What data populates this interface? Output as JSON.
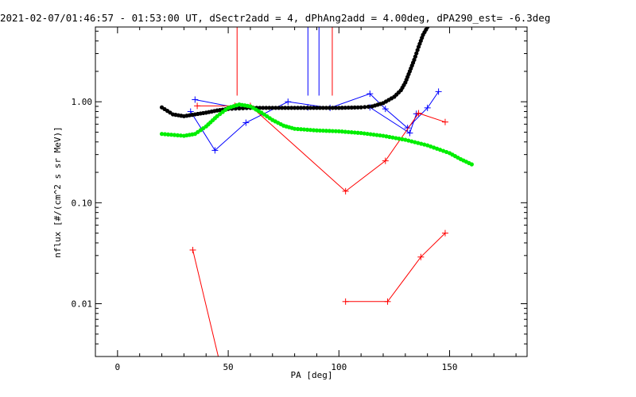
{
  "chart_data": {
    "type": "line",
    "title": "2021-02-07/01:46:57 - 01:53:00 UT, dSectr2add = 4, dPhAng2add = 4.00deg, dPA290_est=  -6.3deg",
    "xlabel": "PA [deg]",
    "ylabel": "nflux [#/(cm^2 s sr MeV)]",
    "xlim": [
      -10,
      185
    ],
    "ylim": [
      0.003,
      5.5
    ],
    "yscale": "log",
    "xticks": [
      0,
      50,
      100,
      150
    ],
    "xtick_labels": [
      "0",
      "50",
      "100",
      "150"
    ],
    "yticks": [
      1.0,
      0.1,
      0.01
    ],
    "ytick_labels": [
      "1.00",
      "0.10",
      "0.01"
    ],
    "colors": {
      "blue": "#0000ff",
      "red": "#ff0000",
      "black": "#000000",
      "green": "#00ee00"
    },
    "vertical_markers": [
      {
        "color": "#ff0000",
        "x": 54,
        "y_from": 1.15
      },
      {
        "color": "#ff0000",
        "x": 97,
        "y_from": 1.15
      },
      {
        "color": "#0000ff",
        "x": 86,
        "y_from": 1.15
      },
      {
        "color": "#0000ff",
        "x": 91,
        "y_from": 1.15
      }
    ],
    "series": [
      {
        "name": "blue-upper",
        "color": "#0000ff",
        "style": "line-plus",
        "x": [
          33,
          44,
          58,
          77,
          96,
          114,
          121,
          131,
          140,
          145
        ],
        "y": [
          0.8,
          0.33,
          0.62,
          1.0,
          0.87,
          1.2,
          0.85,
          0.55,
          0.87,
          1.26
        ]
      },
      {
        "name": "blue-lower",
        "color": "#0000ff",
        "style": "line-plus",
        "x": [
          35,
          53,
          86,
          114,
          132,
          135
        ],
        "y": [
          1.05,
          0.88,
          0.88,
          0.88,
          0.49,
          0.76
        ]
      },
      {
        "name": "red-upper",
        "color": "#ff0000",
        "style": "line-plus",
        "x": [
          36,
          53,
          60,
          103,
          121,
          136,
          148
        ],
        "y": [
          0.91,
          0.91,
          0.91,
          0.13,
          0.26,
          0.77,
          0.63
        ]
      },
      {
        "name": "red-middle",
        "color": "#ff0000",
        "style": "line-plus",
        "x": [
          103,
          122,
          137,
          148
        ],
        "y": [
          0.0105,
          0.0105,
          0.029,
          0.05
        ]
      },
      {
        "name": "red-lower",
        "color": "#ff0000",
        "style": "line-plus",
        "x": [
          34,
          45.5
        ],
        "y": [
          0.034,
          0.003
        ]
      },
      {
        "name": "model-black",
        "color": "#000000",
        "style": "dots",
        "x": [
          20,
          25,
          30,
          35,
          40,
          45,
          50,
          55,
          60,
          70,
          80,
          90,
          100,
          110,
          115,
          120,
          125,
          128,
          130,
          132,
          134,
          136,
          138,
          140
        ],
        "y": [
          0.88,
          0.75,
          0.72,
          0.75,
          0.78,
          0.82,
          0.85,
          0.86,
          0.87,
          0.87,
          0.87,
          0.87,
          0.87,
          0.88,
          0.9,
          0.97,
          1.12,
          1.3,
          1.55,
          2.0,
          2.6,
          3.5,
          4.6,
          5.5
        ]
      },
      {
        "name": "model-green",
        "color": "#00ee00",
        "style": "dots",
        "x": [
          20,
          30,
          35,
          40,
          45,
          50,
          55,
          60,
          65,
          70,
          75,
          80,
          90,
          100,
          110,
          120,
          130,
          140,
          150,
          155,
          160
        ],
        "y": [
          0.48,
          0.46,
          0.48,
          0.57,
          0.72,
          0.87,
          0.94,
          0.9,
          0.78,
          0.66,
          0.58,
          0.54,
          0.52,
          0.51,
          0.49,
          0.46,
          0.42,
          0.37,
          0.31,
          0.27,
          0.24
        ]
      }
    ]
  }
}
